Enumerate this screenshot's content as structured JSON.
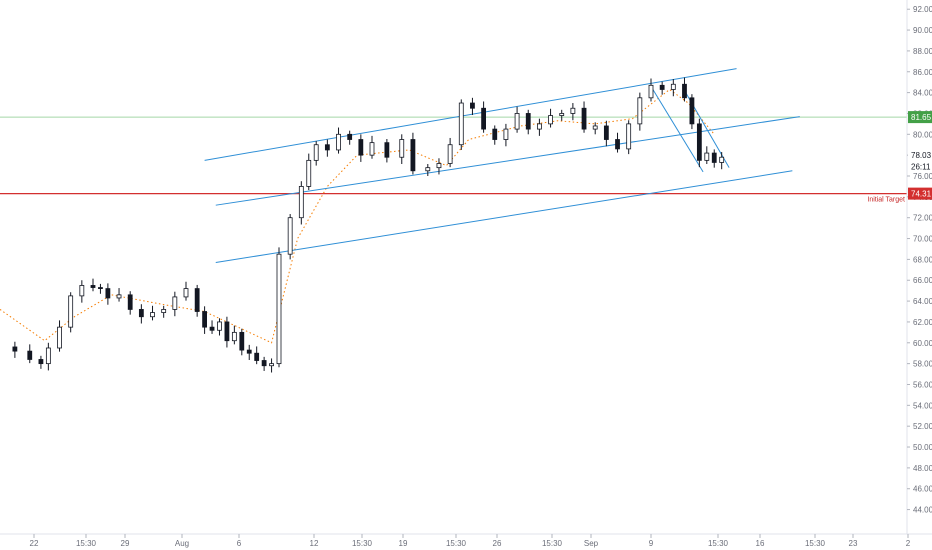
{
  "chart_data": {
    "type": "candlestick",
    "ylim": [
      43,
      92.5
    ],
    "y_ticks": [
      "44.00",
      "46.00",
      "48.00",
      "50.00",
      "52.00",
      "54.00",
      "56.00",
      "58.00",
      "60.00",
      "62.00",
      "64.00",
      "66.00",
      "68.00",
      "70.00",
      "72.00",
      "74.00",
      "76.00",
      "78.00",
      "80.00",
      "82.00",
      "84.00",
      "86.00",
      "88.00",
      "90.00",
      "92.00"
    ],
    "x_ticks": [
      "22",
      "15:30",
      "29",
      "Aug",
      "6",
      "12",
      "15:30",
      "19",
      "15:30",
      "26",
      "15:30",
      "Sep",
      "9",
      "15:30",
      "16",
      "15:30",
      "23",
      "2"
    ],
    "close_series": [
      {
        "x": 0,
        "close": 59.6
      },
      {
        "x": 4,
        "close": 59.2
      },
      {
        "x": 8,
        "close": 58.4
      },
      {
        "x": 11,
        "close": 58.0
      },
      {
        "x": 13,
        "close": 59.5
      },
      {
        "x": 16,
        "close": 61.5
      },
      {
        "x": 19,
        "close": 64.5
      },
      {
        "x": 22,
        "close": 65.5
      },
      {
        "x": 25,
        "close": 65.3
      },
      {
        "x": 27,
        "close": 65.2
      },
      {
        "x": 29,
        "close": 64.3
      },
      {
        "x": 32,
        "close": 64.6
      },
      {
        "x": 35,
        "close": 63.2
      },
      {
        "x": 38,
        "close": 62.5
      },
      {
        "x": 41,
        "close": 62.9
      },
      {
        "x": 44,
        "close": 63.2
      },
      {
        "x": 47,
        "close": 64.4
      },
      {
        "x": 50,
        "close": 65.2
      },
      {
        "x": 53,
        "close": 63.0
      },
      {
        "x": 55,
        "close": 61.5
      },
      {
        "x": 57,
        "close": 61.2
      },
      {
        "x": 59,
        "close": 62.0
      },
      {
        "x": 61,
        "close": 60.2
      },
      {
        "x": 63,
        "close": 61.0
      },
      {
        "x": 65,
        "close": 59.3
      },
      {
        "x": 67,
        "close": 59.0
      },
      {
        "x": 69,
        "close": 58.3
      },
      {
        "x": 71,
        "close": 57.8
      },
      {
        "x": 73,
        "close": 58.0
      },
      {
        "x": 75,
        "close": 68.5
      },
      {
        "x": 78,
        "close": 72.0
      },
      {
        "x": 81,
        "close": 75.0
      },
      {
        "x": 83,
        "close": 77.5
      },
      {
        "x": 85,
        "close": 79.0
      },
      {
        "x": 88,
        "close": 78.5
      },
      {
        "x": 91,
        "close": 80.0
      },
      {
        "x": 94,
        "close": 79.5
      },
      {
        "x": 97,
        "close": 78.0
      },
      {
        "x": 100,
        "close": 79.2
      },
      {
        "x": 104,
        "close": 77.8
      },
      {
        "x": 108,
        "close": 79.5
      },
      {
        "x": 111,
        "close": 76.5
      },
      {
        "x": 115,
        "close": 76.8
      },
      {
        "x": 118,
        "close": 77.2
      },
      {
        "x": 121,
        "close": 79.0
      },
      {
        "x": 124,
        "close": 83.0
      },
      {
        "x": 127,
        "close": 82.5
      },
      {
        "x": 130,
        "close": 80.5
      },
      {
        "x": 133,
        "close": 79.5
      },
      {
        "x": 136,
        "close": 80.5
      },
      {
        "x": 139,
        "close": 82.0
      },
      {
        "x": 142,
        "close": 80.5
      },
      {
        "x": 145,
        "close": 81.0
      },
      {
        "x": 148,
        "close": 81.8
      },
      {
        "x": 151,
        "close": 82.0
      },
      {
        "x": 154,
        "close": 82.5
      },
      {
        "x": 157,
        "close": 80.5
      },
      {
        "x": 160,
        "close": 80.8
      },
      {
        "x": 163,
        "close": 79.5
      },
      {
        "x": 166,
        "close": 78.6
      },
      {
        "x": 169,
        "close": 81.0
      },
      {
        "x": 172,
        "close": 83.5
      },
      {
        "x": 175,
        "close": 84.7
      },
      {
        "x": 178,
        "close": 84.3
      },
      {
        "x": 181,
        "close": 84.8
      },
      {
        "x": 184,
        "close": 83.5
      },
      {
        "x": 186,
        "close": 81.0
      },
      {
        "x": 188,
        "close": 77.5
      },
      {
        "x": 190,
        "close": 78.2
      },
      {
        "x": 192,
        "close": 77.3
      },
      {
        "x": 194,
        "close": 77.8
      }
    ],
    "moving_average": [
      {
        "x": 0,
        "y": 63.2
      },
      {
        "x": 12,
        "y": 60.2
      },
      {
        "x": 20,
        "y": 62.5
      },
      {
        "x": 30,
        "y": 64.6
      },
      {
        "x": 45,
        "y": 63.6
      },
      {
        "x": 55,
        "y": 63.0
      },
      {
        "x": 73,
        "y": 60.0
      },
      {
        "x": 80,
        "y": 70.0
      },
      {
        "x": 88,
        "y": 75.0
      },
      {
        "x": 96,
        "y": 78.0
      },
      {
        "x": 110,
        "y": 78.5
      },
      {
        "x": 120,
        "y": 77.0
      },
      {
        "x": 126,
        "y": 79.5
      },
      {
        "x": 140,
        "y": 80.8
      },
      {
        "x": 150,
        "y": 81.3
      },
      {
        "x": 160,
        "y": 81.0
      },
      {
        "x": 170,
        "y": 81.5
      },
      {
        "x": 180,
        "y": 84.3
      },
      {
        "x": 185,
        "y": 83.0
      },
      {
        "x": 192,
        "y": 80.0
      }
    ],
    "trendlines": [
      {
        "color": "#2f8fd6",
        "from": {
          "x": 55,
          "y": 77.5
        },
        "to": {
          "x": 198,
          "y": 86.3
        }
      },
      {
        "color": "#2f8fd6",
        "from": {
          "x": 58,
          "y": 73.2
        },
        "to": {
          "x": 215,
          "y": 81.7
        }
      },
      {
        "color": "#2f8fd6",
        "from": {
          "x": 58,
          "y": 67.7
        },
        "to": {
          "x": 213,
          "y": 76.5
        }
      },
      {
        "color": "#2f8fd6",
        "from": {
          "x": 175,
          "y": 84.6
        },
        "to": {
          "x": 189,
          "y": 76.4
        }
      },
      {
        "color": "#2f8fd6",
        "from": {
          "x": 184,
          "y": 84.2
        },
        "to": {
          "x": 196,
          "y": 76.8
        }
      }
    ],
    "horizontal_lines": [
      {
        "y": 74.31,
        "color": "#d32f2f",
        "label": "Initial Target"
      },
      {
        "y": 81.65,
        "color": "#a5d6a7"
      }
    ],
    "price_labels": [
      {
        "value": "81.65",
        "y": 81.65,
        "color": "#43a047"
      },
      {
        "value": "78.03",
        "y": 78.03,
        "color": "#ffffff"
      },
      {
        "value": "26:11",
        "y": 76.9,
        "color": "#ffffff"
      },
      {
        "value": "74.31",
        "y": 74.31,
        "color": "#d32f2f"
      }
    ],
    "colors": {
      "candle_up": "#ffffff",
      "candle_down": "#131722",
      "moving_average": "#f57c00",
      "trendline": "#2f8fd6"
    }
  }
}
